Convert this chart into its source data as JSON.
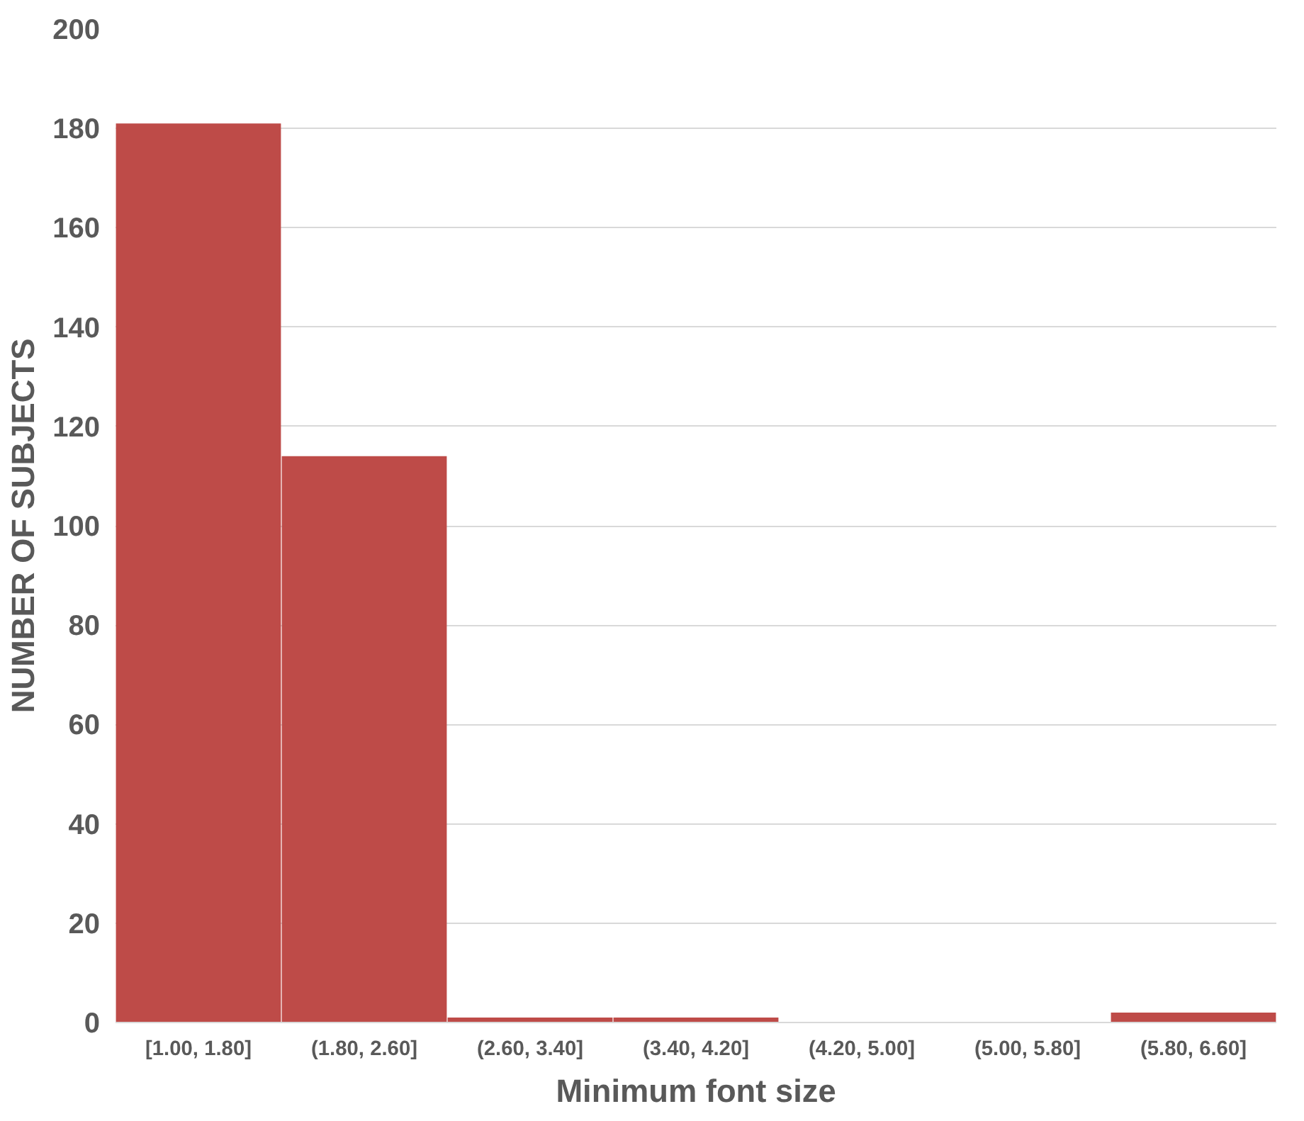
{
  "chart_data": {
    "type": "bar",
    "xlabel": "Minimum font size",
    "ylabel": "NUMBER OF SUBJECTS",
    "categories": [
      "[1.00, 1.80]",
      "(1.80, 2.60]",
      "(2.60, 3.40]",
      "(3.40, 4.20]",
      "(4.20, 5.00]",
      "(5.00, 5.80]",
      "(5.80, 6.60]"
    ],
    "values": [
      181,
      114,
      1,
      1,
      0,
      0,
      2
    ],
    "color": "#be4b48",
    "ylim": [
      0,
      200
    ],
    "yticks": [
      0,
      20,
      40,
      60,
      80,
      100,
      120,
      140,
      160,
      180,
      200
    ],
    "grid": "y"
  }
}
